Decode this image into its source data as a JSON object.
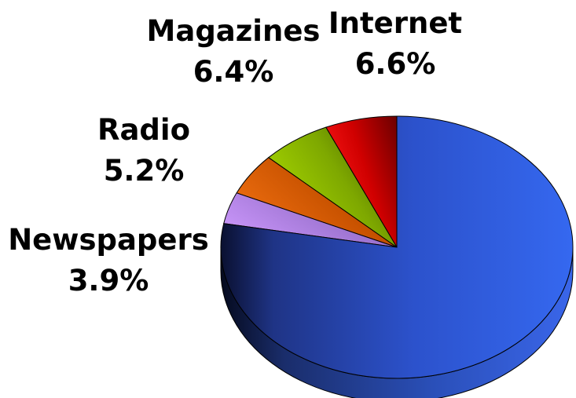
{
  "chart_data": {
    "type": "pie",
    "title": "",
    "style": "3d",
    "slices": [
      {
        "label": "Internet",
        "value_label": "6.6%",
        "value": 6.6,
        "color": "#ff0000"
      },
      {
        "label": "Magazines",
        "value_label": "6.4%",
        "value": 6.4,
        "color": "#99cc00"
      },
      {
        "label": "Radio",
        "value_label": "5.2%",
        "value": 5.2,
        "color": "#e0610a"
      },
      {
        "label": "Newspapers",
        "value_label": "3.9%",
        "value": 3.9,
        "color": "#b57fe6"
      },
      {
        "label": "",
        "value_label": "",
        "value": 77.9,
        "color": "#2e5ce6"
      }
    ]
  }
}
